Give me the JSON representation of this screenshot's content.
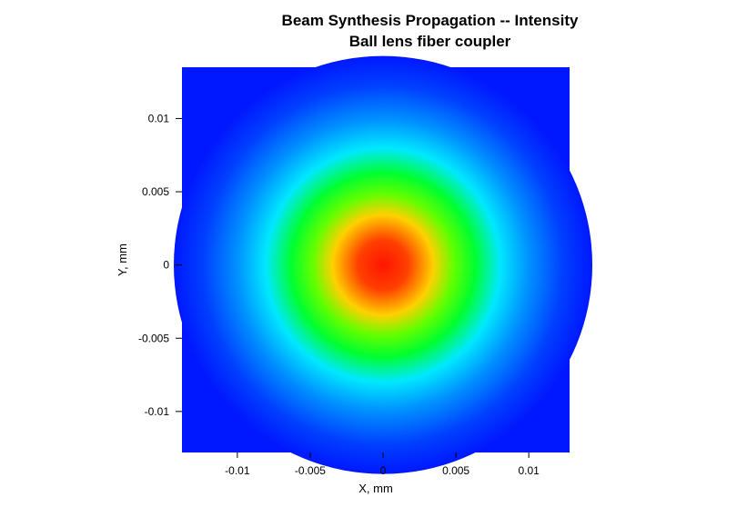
{
  "chart_data": {
    "type": "heatmap",
    "title": "Beam Synthesis Propagation -- Intensity",
    "subtitle": "Ball lens fiber coupler",
    "xlabel": "X, mm",
    "ylabel": "Y, mm",
    "xlim": [
      -0.0138,
      0.0128
    ],
    "ylim": [
      -0.0128,
      0.0135
    ],
    "x_ticks": [
      -0.01,
      -0.005,
      0,
      0.005,
      0.01
    ],
    "x_tick_labels": [
      "-0.01",
      "-0.005",
      "0",
      "0.005",
      "0.01"
    ],
    "y_ticks": [
      0.01,
      0.005,
      0,
      -0.005,
      -0.01
    ],
    "y_tick_labels": [
      "0.01",
      "0.005",
      "0",
      "-0.005",
      "-0.01"
    ],
    "colormap": [
      "#0018ff",
      "#00c8ff",
      "#00ff00",
      "#ffff00",
      "#ff0000"
    ],
    "peak_center": [
      0,
      0
    ],
    "peak_intensity": 1.0,
    "beam_radius_1e2": 0.0048
  }
}
